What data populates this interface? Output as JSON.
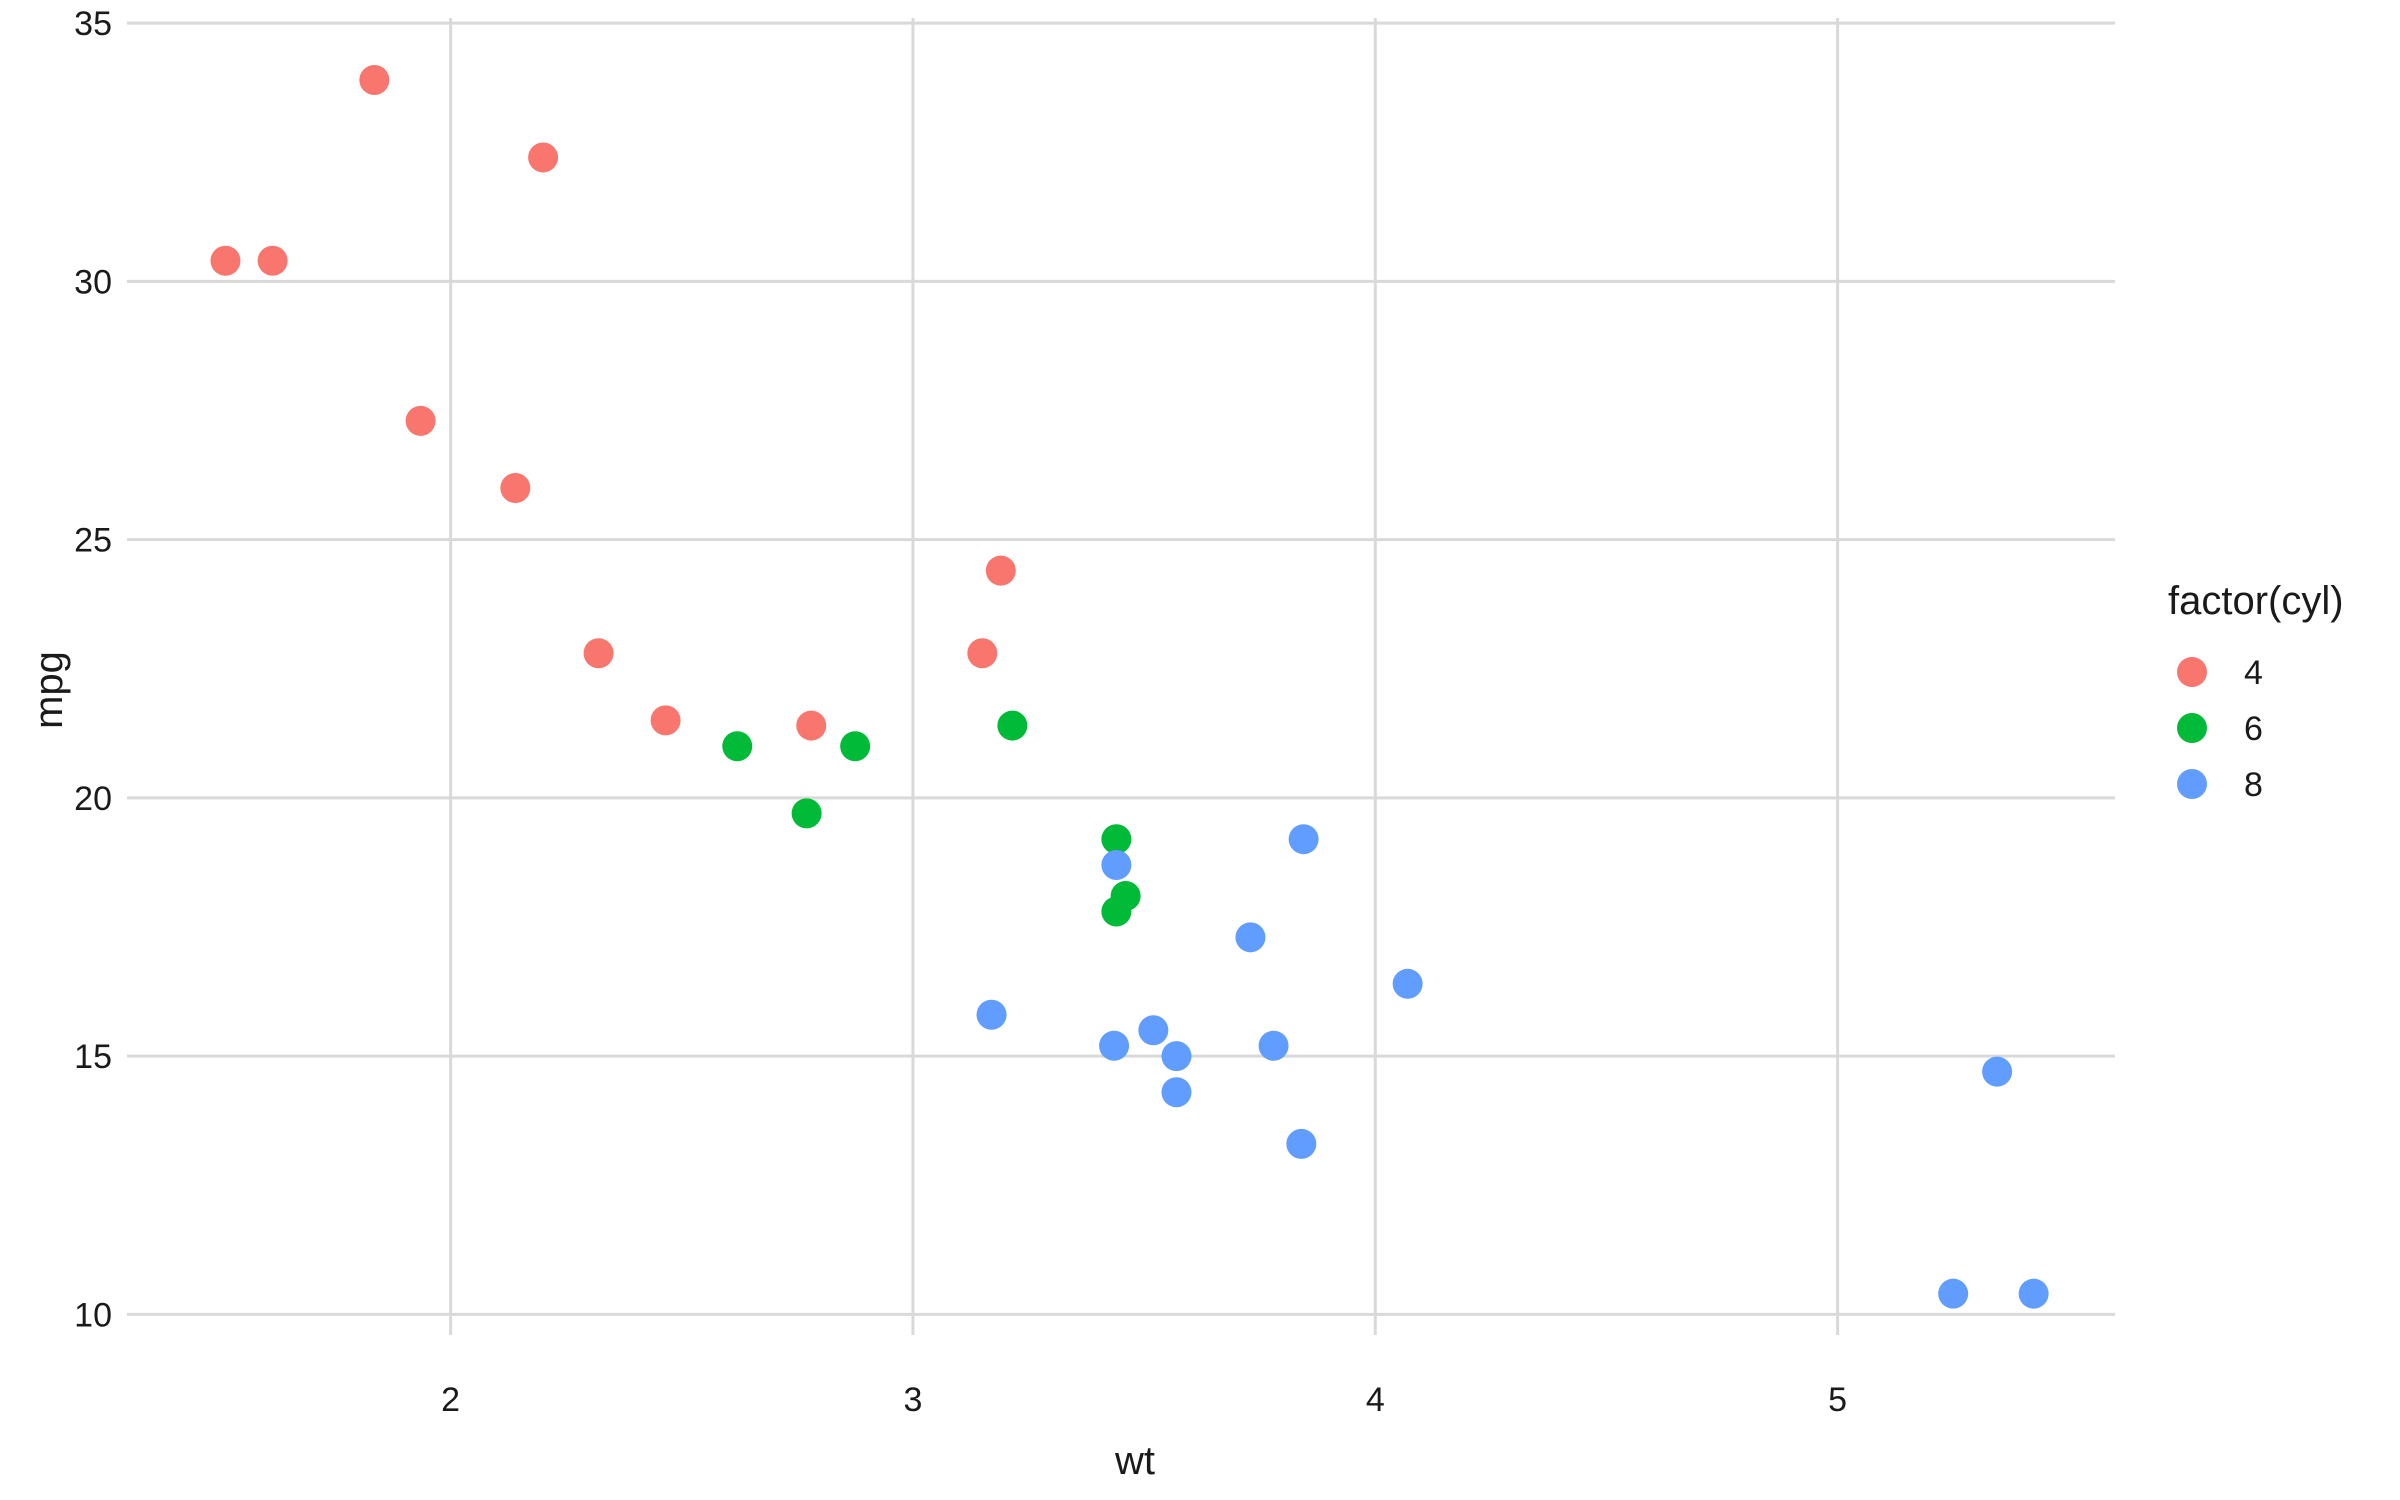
{
  "chart_data": {
    "type": "scatter",
    "xlabel": "wt",
    "ylabel": "mpg",
    "xlim": [
      1.3,
      5.6
    ],
    "ylim": [
      9.6,
      35.1
    ],
    "x_ticks": [
      2,
      3,
      4,
      5
    ],
    "y_ticks": [
      10,
      15,
      20,
      25,
      30,
      35
    ],
    "grid": true,
    "legend": {
      "title": "factor(cyl)",
      "position": "right"
    },
    "series": [
      {
        "name": "4",
        "color": "#F8766D",
        "points": [
          {
            "x": 1.513,
            "y": 30.4
          },
          {
            "x": 1.615,
            "y": 30.4
          },
          {
            "x": 1.835,
            "y": 33.9
          },
          {
            "x": 1.935,
            "y": 27.3
          },
          {
            "x": 2.14,
            "y": 26.0
          },
          {
            "x": 2.2,
            "y": 32.4
          },
          {
            "x": 2.32,
            "y": 22.8
          },
          {
            "x": 2.465,
            "y": 21.5
          },
          {
            "x": 2.78,
            "y": 21.4
          },
          {
            "x": 3.15,
            "y": 22.8
          },
          {
            "x": 3.19,
            "y": 24.4
          }
        ]
      },
      {
        "name": "6",
        "color": "#00BA38",
        "points": [
          {
            "x": 2.62,
            "y": 21.0
          },
          {
            "x": 2.77,
            "y": 19.7
          },
          {
            "x": 2.875,
            "y": 21.0
          },
          {
            "x": 3.215,
            "y": 21.4
          },
          {
            "x": 3.44,
            "y": 19.2
          },
          {
            "x": 3.44,
            "y": 17.8
          },
          {
            "x": 3.46,
            "y": 18.1
          }
        ]
      },
      {
        "name": "8",
        "color": "#619CFF",
        "points": [
          {
            "x": 3.17,
            "y": 15.8
          },
          {
            "x": 3.435,
            "y": 15.2
          },
          {
            "x": 3.44,
            "y": 18.7
          },
          {
            "x": 3.52,
            "y": 15.5
          },
          {
            "x": 3.57,
            "y": 14.3
          },
          {
            "x": 3.57,
            "y": 15.0
          },
          {
            "x": 3.73,
            "y": 17.3
          },
          {
            "x": 3.78,
            "y": 15.2
          },
          {
            "x": 3.84,
            "y": 13.3
          },
          {
            "x": 3.845,
            "y": 19.2
          },
          {
            "x": 4.07,
            "y": 16.4
          },
          {
            "x": 5.25,
            "y": 10.4
          },
          {
            "x": 5.345,
            "y": 14.7
          },
          {
            "x": 5.424,
            "y": 10.4
          }
        ]
      }
    ]
  }
}
